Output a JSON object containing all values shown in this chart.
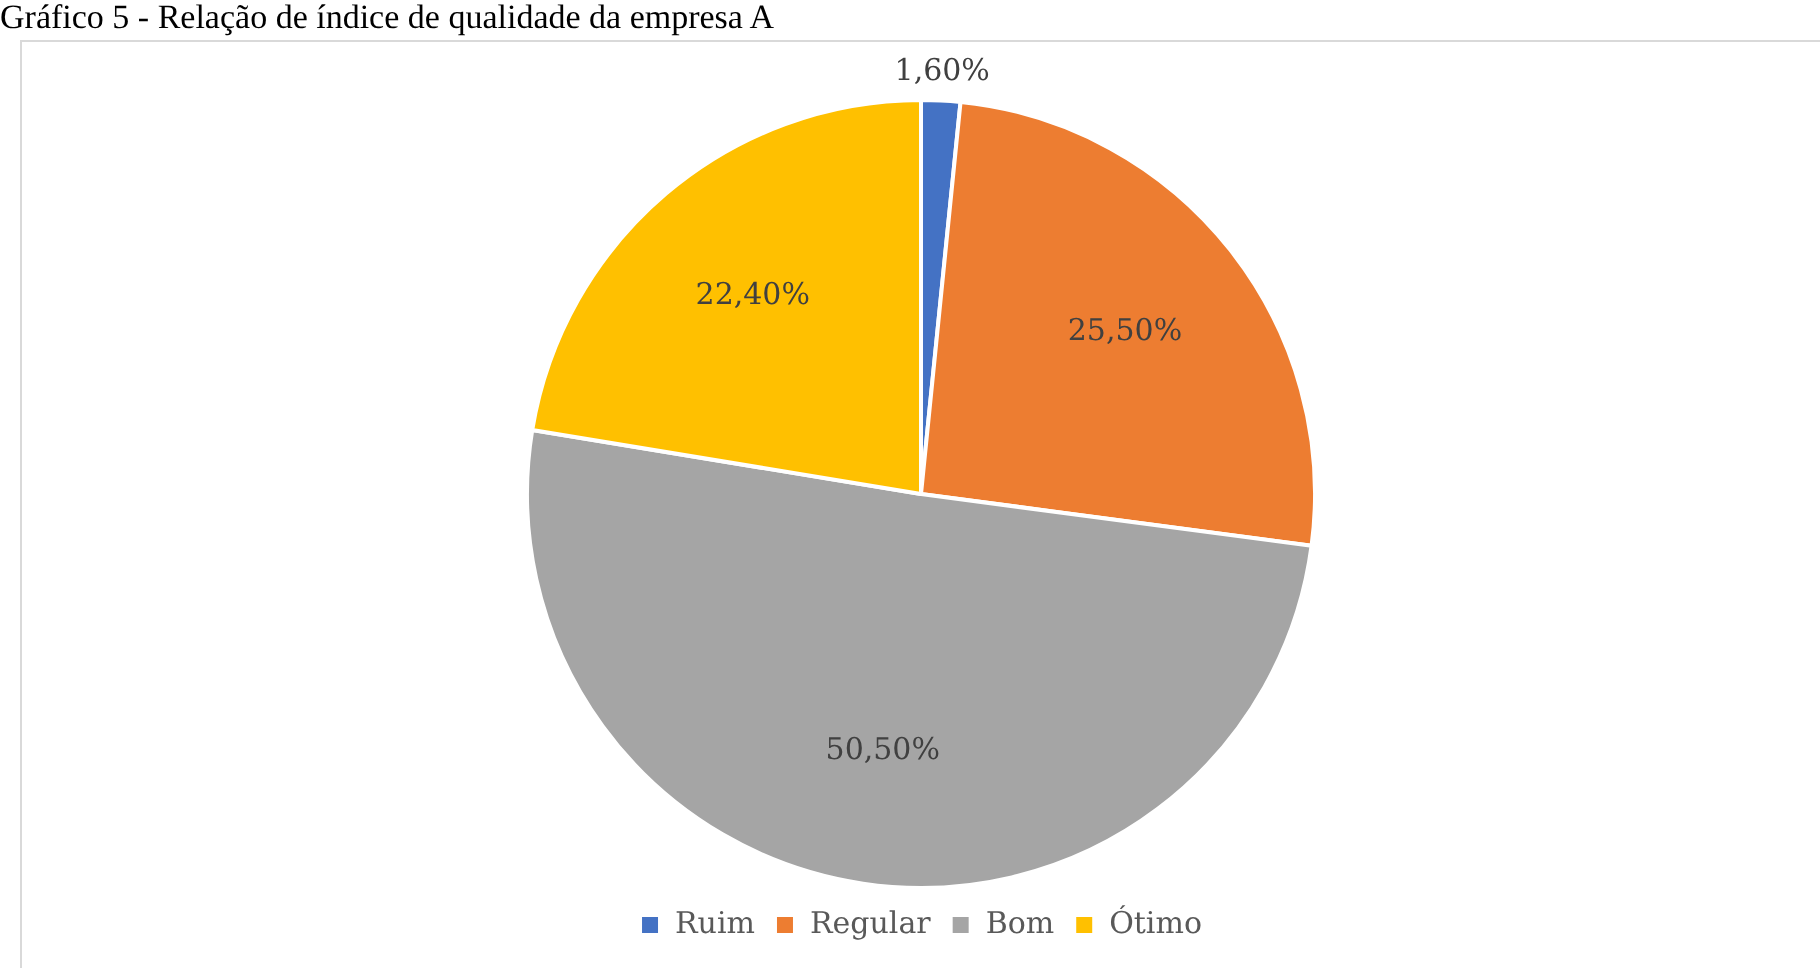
{
  "chart_data": {
    "type": "pie",
    "title": "Gráfico 5 - Relação de índice de qualidade da empresa A",
    "categories": [
      "Ruim",
      "Regular",
      "Bom",
      "Ótimo"
    ],
    "values": [
      1.6,
      25.5,
      50.5,
      22.4
    ],
    "colors": [
      "#4472c4",
      "#ed7d31",
      "#a5a5a5",
      "#ffc000"
    ],
    "value_labels": [
      "1,60%",
      "25,50%",
      "50,50%",
      "22,40%"
    ],
    "legend": "bottom"
  }
}
